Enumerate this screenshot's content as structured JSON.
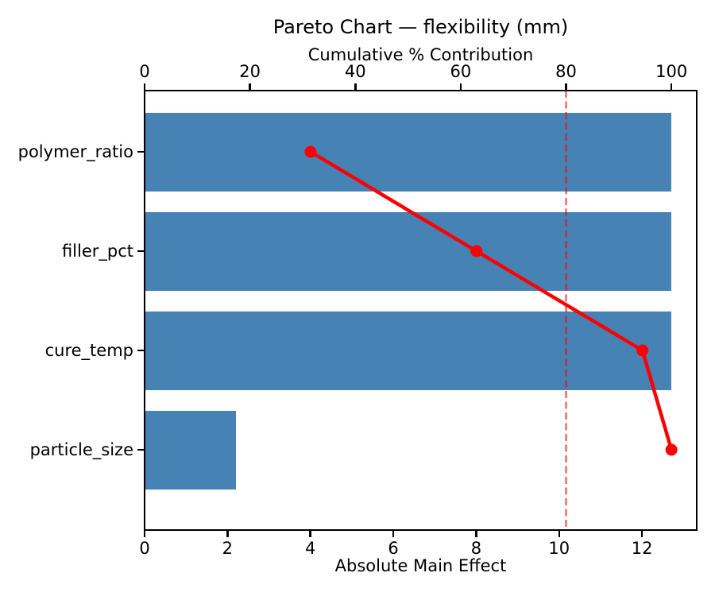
{
  "chart_data": {
    "type": "bar",
    "orientation": "horizontal",
    "title": "Pareto Chart — flexibility (mm)",
    "xlabel": "Absolute Main Effect",
    "top_xlabel": "Cumulative % Contribution",
    "categories": [
      "polymer_ratio",
      "filler_pct",
      "cure_temp",
      "particle_size"
    ],
    "values": [
      12.7,
      12.7,
      12.7,
      2.2
    ],
    "cumulative_pct": [
      31.5,
      63.0,
      94.5,
      100.0
    ],
    "threshold_pct": 80,
    "x_ticks": [
      0,
      2,
      4,
      6,
      8,
      10,
      12
    ],
    "x_max": 13.32,
    "top_ticks": [
      0,
      20,
      40,
      60,
      80,
      100
    ],
    "top_max": 104.8,
    "grid": false,
    "legend": null,
    "bar_color": "#4682B4",
    "line_color": "#ff0000",
    "threshold_color": "rgba(255,0,0,0.6)"
  }
}
